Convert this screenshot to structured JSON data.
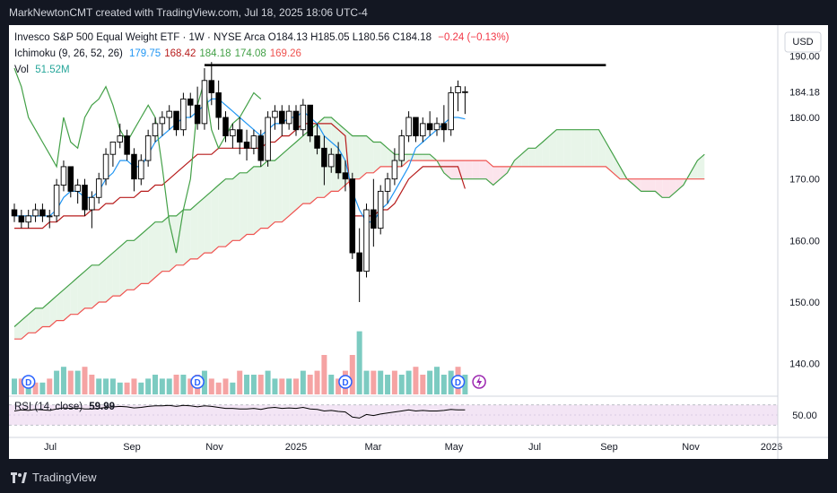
{
  "header": {
    "attribution": "MarkNewtonCMT created with TradingView.com, Jul 18, 2025 18:06 UTC-4"
  },
  "legend": {
    "title": "Invesco S&P 500 Equal Weight ETF · 1W · NYSE Arca",
    "ohlc": [
      {
        "k": "O",
        "v": "184.13"
      },
      {
        "k": "H",
        "v": "185.05"
      },
      {
        "k": "L",
        "v": "180.56"
      },
      {
        "k": "C",
        "v": "184.18"
      }
    ],
    "change": "−0.24 (−0.13%)",
    "ichimoku_label": "Ichimoku (9, 26, 52, 26)",
    "ichimoku_values": [
      "179.75",
      "168.42",
      "184.18",
      "174.08",
      "169.26"
    ],
    "vol_label": "Vol",
    "vol_value": "51.52M",
    "rsi_label": "RSI (14, close)",
    "rsi_value": "59.99"
  },
  "colors": {
    "bg": "#ffffff",
    "up_candle": "#ffffff",
    "down_candle": "#000000",
    "candle_border": "#000000",
    "tenkan": "#2196f3",
    "kijun": "#b71c1c",
    "chikou": "#43a047",
    "span_a": "#43a047",
    "span_b": "#ef5350",
    "cloud_bull": "#e8f5e9",
    "cloud_bear": "#fce4ec",
    "vol_up": "#7ccbc1",
    "vol_down": "#f5a3a3",
    "rsi_line": "#000000",
    "rsi_band": "#f3e5f5",
    "resistance": "#000000",
    "dividend": "#2962ff",
    "split": "#9c27b0"
  },
  "chart_data": {
    "type": "candlestick",
    "title": "Invesco S&P 500 Equal Weight ETF · 1W · NYSE Arca",
    "currency_label": "USD",
    "y_ticks": [
      "190.00",
      "180.00",
      "170.00",
      "160.00",
      "150.00",
      "140.00"
    ],
    "y_range": [
      135,
      195
    ],
    "last_price_label": "184.18",
    "x_ticks": [
      "Jul",
      "Sep",
      "Nov",
      "2025",
      "Mar",
      "May",
      "Jul",
      "Sep",
      "Nov",
      "2026"
    ],
    "candles": [
      [
        165,
        166,
        163,
        164
      ],
      [
        164,
        165,
        162,
        163
      ],
      [
        163,
        165,
        162,
        164
      ],
      [
        164,
        166,
        163,
        165
      ],
      [
        165,
        166,
        163,
        164
      ],
      [
        164,
        165,
        162,
        164
      ],
      [
        164,
        170,
        163,
        169
      ],
      [
        169,
        173,
        168,
        172
      ],
      [
        172,
        172,
        167,
        168
      ],
      [
        168,
        170,
        166,
        169
      ],
      [
        169,
        170,
        164,
        165
      ],
      [
        165,
        168,
        162,
        167
      ],
      [
        167,
        171,
        166,
        170
      ],
      [
        170,
        175,
        169,
        174
      ],
      [
        174,
        176,
        172,
        176
      ],
      [
        176,
        179,
        175,
        177
      ],
      [
        177,
        178,
        173,
        174
      ],
      [
        174,
        175,
        168,
        170
      ],
      [
        170,
        174,
        169,
        173
      ],
      [
        173,
        178,
        172,
        177
      ],
      [
        177,
        180,
        176,
        179
      ],
      [
        179,
        181,
        177,
        180
      ],
      [
        180,
        182,
        178,
        181
      ],
      [
        181,
        181,
        177,
        178
      ],
      [
        178,
        184,
        177,
        183
      ],
      [
        183,
        184,
        180,
        182
      ],
      [
        182,
        185,
        178,
        179
      ],
      [
        179,
        188,
        178,
        186
      ],
      [
        186,
        189,
        182,
        184
      ],
      [
        184,
        186,
        178,
        180
      ],
      [
        180,
        181,
        176,
        177
      ],
      [
        177,
        179,
        175,
        178
      ],
      [
        178,
        180,
        174,
        176
      ],
      [
        176,
        178,
        173,
        175
      ],
      [
        175,
        178,
        174,
        177
      ],
      [
        177,
        178,
        172,
        173
      ],
      [
        173,
        181,
        172,
        180
      ],
      [
        180,
        182,
        178,
        181
      ],
      [
        181,
        182,
        177,
        179
      ],
      [
        179,
        182,
        178,
        181
      ],
      [
        181,
        182,
        177,
        178
      ],
      [
        178,
        183,
        177,
        182
      ],
      [
        182,
        182,
        176,
        177
      ],
      [
        177,
        179,
        174,
        175
      ],
      [
        175,
        177,
        169,
        172
      ],
      [
        172,
        175,
        171,
        174
      ],
      [
        174,
        176,
        170,
        171
      ],
      [
        171,
        173,
        168,
        170
      ],
      [
        170,
        171,
        157,
        158
      ],
      [
        158,
        162,
        150,
        155
      ],
      [
        155,
        166,
        154,
        165
      ],
      [
        165,
        170,
        159,
        162
      ],
      [
        162,
        169,
        161,
        168
      ],
      [
        168,
        171,
        166,
        170
      ],
      [
        170,
        175,
        169,
        173
      ],
      [
        173,
        178,
        172,
        177
      ],
      [
        177,
        181,
        176,
        180
      ],
      [
        180,
        180,
        176,
        177
      ],
      [
        177,
        180,
        176,
        179
      ],
      [
        179,
        181,
        177,
        178
      ],
      [
        178,
        180,
        177,
        179
      ],
      [
        179,
        182,
        176,
        178
      ],
      [
        178,
        185,
        177,
        184
      ],
      [
        184,
        186,
        181,
        185
      ],
      [
        184.13,
        185.05,
        180.56,
        184.18
      ]
    ],
    "volume": [
      [
        4,
        1
      ],
      [
        4,
        0
      ],
      [
        3,
        1
      ],
      [
        3,
        0
      ],
      [
        3,
        1
      ],
      [
        4,
        0
      ],
      [
        6,
        1
      ],
      [
        7,
        1
      ],
      [
        6,
        0
      ],
      [
        6,
        1
      ],
      [
        7,
        0
      ],
      [
        5,
        0
      ],
      [
        4,
        1
      ],
      [
        4,
        1
      ],
      [
        4,
        1
      ],
      [
        3,
        1
      ],
      [
        3,
        0
      ],
      [
        4,
        0
      ],
      [
        3,
        1
      ],
      [
        4,
        1
      ],
      [
        5,
        1
      ],
      [
        4,
        1
      ],
      [
        4,
        1
      ],
      [
        5,
        0
      ],
      [
        5,
        1
      ],
      [
        4,
        0
      ],
      [
        5,
        0
      ],
      [
        6,
        1
      ],
      [
        4,
        0
      ],
      [
        3,
        0
      ],
      [
        4,
        0
      ],
      [
        3,
        1
      ],
      [
        6,
        0
      ],
      [
        5,
        1
      ],
      [
        5,
        1
      ],
      [
        5,
        0
      ],
      [
        6,
        1
      ],
      [
        4,
        1
      ],
      [
        4,
        0
      ],
      [
        4,
        1
      ],
      [
        4,
        0
      ],
      [
        6,
        1
      ],
      [
        5,
        0
      ],
      [
        6,
        0
      ],
      [
        10,
        0
      ],
      [
        5,
        1
      ],
      [
        4,
        0
      ],
      [
        6,
        0
      ],
      [
        10,
        0
      ],
      [
        16,
        1
      ],
      [
        6,
        1
      ],
      [
        6,
        0
      ],
      [
        6,
        1
      ],
      [
        5,
        1
      ],
      [
        6,
        0
      ],
      [
        5,
        1
      ],
      [
        6,
        1
      ],
      [
        7,
        0
      ],
      [
        5,
        0
      ],
      [
        6,
        1
      ],
      [
        7,
        1
      ],
      [
        5,
        1
      ],
      [
        6,
        1
      ],
      [
        7,
        0
      ],
      [
        5,
        1
      ]
    ],
    "dividend_markers": [
      2,
      26,
      47,
      63
    ],
    "split_markers": [
      66
    ],
    "ichimoku": {
      "tenkan": [
        164,
        164,
        164,
        164,
        164,
        164,
        165,
        167,
        168,
        168,
        167,
        167,
        168,
        170,
        171,
        173,
        173,
        172,
        172,
        174,
        176,
        177,
        178,
        179,
        180,
        180,
        181,
        182,
        183,
        183,
        182,
        181,
        180,
        179,
        178,
        177,
        178,
        179,
        179,
        180,
        180,
        181,
        180,
        179,
        177,
        176,
        175,
        173,
        168,
        165,
        163,
        163,
        165,
        166,
        168,
        170,
        172,
        175,
        176,
        177,
        178,
        179,
        180,
        180,
        179.75
      ],
      "kijun": [
        162,
        162,
        162,
        162,
        162,
        163,
        163,
        164,
        164,
        164,
        164,
        165,
        165,
        166,
        166,
        167,
        167,
        167,
        168,
        168,
        169,
        169,
        170,
        171,
        172,
        173,
        174,
        174,
        174,
        175,
        175,
        175,
        175,
        175,
        175,
        175,
        176,
        176,
        177,
        177,
        178,
        179,
        179,
        179,
        179,
        179,
        178,
        177,
        164,
        164,
        164,
        164,
        165,
        165,
        166,
        168,
        170,
        171,
        172,
        172,
        172,
        172,
        172,
        172,
        168.42
      ],
      "chikou": [
        188,
        185,
        180,
        178,
        176,
        174,
        172,
        180,
        176,
        175,
        180,
        182,
        183,
        185,
        182,
        178,
        176,
        178,
        180,
        182,
        180,
        172,
        163,
        158,
        165,
        170,
        182,
        186,
        178,
        175,
        177,
        179,
        180,
        182,
        184,
        183
      ],
      "span_a_offset": 0,
      "span_a": [
        146,
        147,
        148,
        149,
        149,
        150,
        151,
        152,
        153,
        154,
        155,
        156,
        156,
        157,
        158,
        159,
        160,
        160,
        161,
        162,
        163,
        163,
        164,
        164,
        165,
        165,
        166,
        167,
        168,
        169,
        170,
        170,
        171,
        171,
        172,
        172,
        173,
        173,
        174,
        175,
        176,
        177,
        178,
        179,
        180,
        180,
        179,
        178,
        177,
        177,
        177,
        176,
        176,
        175,
        174,
        174,
        174,
        174,
        174,
        174,
        173,
        171,
        170,
        170,
        170,
        170,
        170,
        170,
        169,
        170,
        171,
        173,
        174,
        175,
        175,
        176,
        177,
        178,
        178,
        178,
        178,
        178,
        178,
        178,
        176,
        174,
        172,
        170,
        169,
        168,
        168,
        168,
        167,
        167,
        168,
        169,
        171,
        173,
        174
      ],
      "span_b": [
        144,
        144,
        145,
        145,
        146,
        146,
        147,
        147,
        148,
        148,
        149,
        149,
        150,
        150,
        151,
        151,
        152,
        152,
        153,
        153,
        154,
        155,
        155,
        156,
        156,
        157,
        157,
        158,
        158,
        159,
        159,
        160,
        160,
        161,
        161,
        162,
        162,
        163,
        163,
        164,
        165,
        166,
        166,
        167,
        167,
        168,
        168,
        169,
        170,
        170,
        171,
        171,
        172,
        172,
        172,
        172,
        173,
        173,
        173,
        173,
        173,
        173,
        173,
        173,
        173,
        173,
        173,
        173,
        172,
        172,
        172,
        172,
        172,
        172,
        172,
        172,
        172,
        172,
        172,
        172,
        172,
        172,
        172,
        172,
        172,
        171,
        170,
        170,
        170,
        170,
        170,
        170,
        170,
        170,
        170,
        170,
        170,
        170,
        170
      ]
    },
    "resistance_line": {
      "from_index": 27,
      "to_index": 84,
      "price": 188.5
    },
    "rsi": {
      "levels": [
        70,
        50,
        30
      ],
      "values": [
        58,
        60,
        59,
        61,
        60,
        59,
        62,
        64,
        63,
        64,
        62,
        62,
        63,
        65,
        66,
        67,
        66,
        64,
        65,
        67,
        68,
        68,
        69,
        67,
        69,
        68,
        66,
        68,
        67,
        65,
        63,
        63,
        62,
        62,
        63,
        61,
        64,
        65,
        63,
        64,
        63,
        65,
        62,
        61,
        58,
        59,
        57,
        56,
        46,
        44,
        51,
        49,
        52,
        54,
        56,
        58,
        60,
        58,
        59,
        58,
        58,
        59,
        61,
        60,
        59.99
      ]
    }
  }
}
